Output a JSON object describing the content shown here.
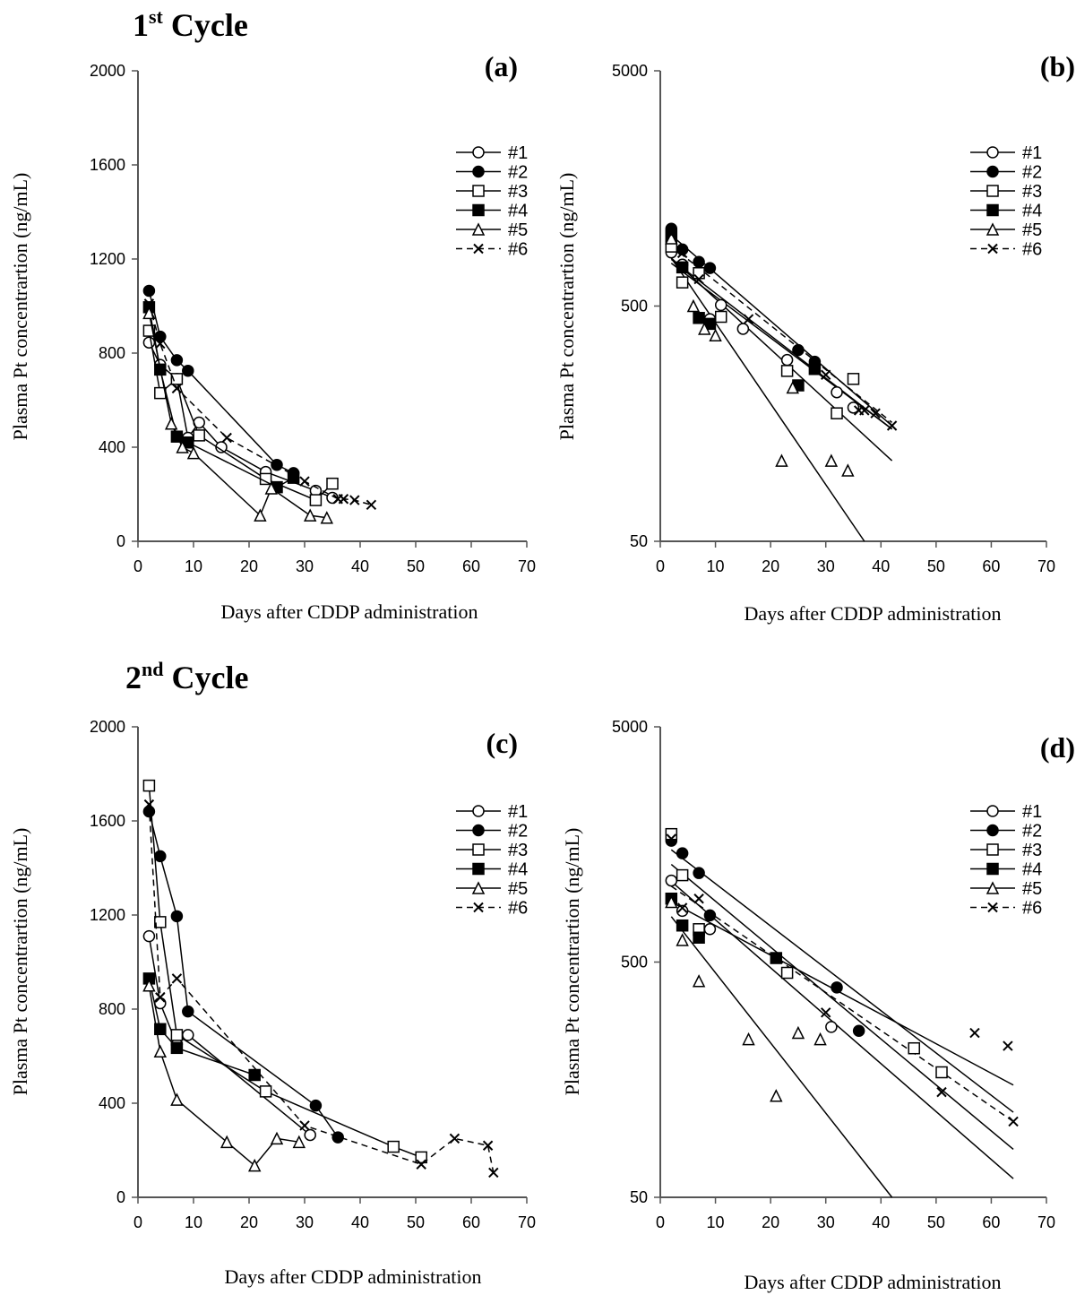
{
  "page": {
    "cycle1_title": "Cycle",
    "cycle1_ordinal": "1",
    "cycle1_sup": "st",
    "cycle2_title": "Cycle",
    "cycle2_ordinal": "2",
    "cycle2_sup": "nd"
  },
  "colors": {
    "line": "#000000",
    "marker_open": "#ffffff",
    "marker_filled": "#000000",
    "open_square_edge": "#1f3864"
  },
  "chart_data": [
    {
      "id": "a",
      "type": "line",
      "panel_label": "(a)",
      "xlabel": "Days after CDDP administration",
      "ylabel": "Plasma Pt concentrartion (ng/mL)",
      "xlim": [
        0,
        70
      ],
      "xticks": [
        0,
        10,
        20,
        30,
        40,
        50,
        60,
        70
      ],
      "ylim": [
        0,
        2000
      ],
      "yticks": [
        0,
        400,
        800,
        1200,
        1600,
        2000
      ],
      "yscale": "linear",
      "legend_position": "top-right",
      "series": [
        {
          "name": "#1",
          "marker": "circle-open",
          "dash": false,
          "x": [
            2,
            4,
            7,
            9,
            11,
            15,
            23,
            32,
            35
          ],
          "y": [
            845,
            750,
            690,
            440,
            505,
            400,
            295,
            215,
            185
          ]
        },
        {
          "name": "#2",
          "marker": "circle-filled",
          "dash": false,
          "x": [
            2,
            4,
            7,
            9,
            25,
            28
          ],
          "y": [
            1065,
            870,
            770,
            725,
            325,
            290
          ]
        },
        {
          "name": "#3",
          "marker": "square-open",
          "dash": false,
          "x": [
            2,
            4,
            7,
            11,
            23,
            32,
            35
          ],
          "y": [
            895,
            630,
            690,
            450,
            265,
            175,
            245
          ]
        },
        {
          "name": "#4",
          "marker": "square-filled",
          "dash": false,
          "x": [
            2,
            4,
            7,
            9,
            25,
            28
          ],
          "y": [
            995,
            730,
            445,
            420,
            230,
            270
          ]
        },
        {
          "name": "#5",
          "marker": "triangle-open",
          "dash": false,
          "x": [
            2,
            6,
            8,
            10,
            22,
            24,
            31,
            34
          ],
          "y": [
            970,
            500,
            400,
            375,
            110,
            225,
            110,
            100
          ]
        },
        {
          "name": "#6",
          "marker": "x",
          "dash": true,
          "x": [
            2,
            4,
            7,
            16,
            30,
            36,
            37,
            39,
            42
          ],
          "y": [
            1010,
            840,
            650,
            440,
            255,
            180,
            180,
            175,
            155
          ]
        }
      ]
    },
    {
      "id": "b",
      "type": "scatter",
      "panel_label": "(b)",
      "xlabel": "Days after CDDP administration",
      "ylabel": "Plasma Pt concentrartion (ng/mL)",
      "xlim": [
        0,
        70
      ],
      "xticks": [
        0,
        10,
        20,
        30,
        40,
        50,
        60,
        70
      ],
      "ylim": [
        50,
        5000
      ],
      "yticks": [
        50,
        500,
        5000
      ],
      "yscale": "log",
      "legend_position": "top-right",
      "series": [
        {
          "name": "#1",
          "marker": "circle-open",
          "dash": false,
          "x": [
            2,
            4,
            7,
            9,
            11,
            15,
            23,
            32,
            35
          ],
          "y": [
            845,
            750,
            690,
            440,
            505,
            400,
            295,
            215,
            185
          ],
          "fit_line": [
            [
              2,
              790
            ],
            [
              42,
              150
            ]
          ]
        },
        {
          "name": "#2",
          "marker": "circle-filled",
          "dash": false,
          "x": [
            2,
            4,
            7,
            9,
            25,
            28
          ],
          "y": [
            1065,
            870,
            770,
            725,
            325,
            290
          ],
          "fit_line": [
            [
              2,
              1000
            ],
            [
              42,
              155
            ]
          ]
        },
        {
          "name": "#3",
          "marker": "square-open",
          "dash": false,
          "x": [
            2,
            4,
            7,
            11,
            23,
            32,
            35
          ],
          "y": [
            895,
            630,
            690,
            450,
            265,
            175,
            245
          ],
          "fit_line": [
            [
              2,
              760
            ],
            [
              42,
              150
            ]
          ]
        },
        {
          "name": "#4",
          "marker": "square-filled",
          "dash": false,
          "x": [
            2,
            4,
            7,
            9,
            25,
            28
          ],
          "y": [
            995,
            730,
            445,
            420,
            230,
            270
          ],
          "fit_line": [
            [
              2,
              800
            ],
            [
              42,
              110
            ]
          ]
        },
        {
          "name": "#5",
          "marker": "triangle-open",
          "dash": false,
          "x": [
            2,
            6,
            8,
            10,
            22,
            24,
            31,
            34
          ],
          "y": [
            970,
            500,
            400,
            375,
            110,
            225,
            110,
            100
          ],
          "fit_line": [
            [
              2,
              800
            ],
            [
              37,
              50
            ]
          ]
        },
        {
          "name": "#6",
          "marker": "x",
          "dash": true,
          "x": [
            2,
            4,
            7,
            16,
            30,
            36,
            37,
            39,
            42
          ],
          "y": [
            1010,
            840,
            650,
            440,
            255,
            180,
            180,
            175,
            155
          ],
          "fit_line": [
            [
              2,
              900
            ],
            [
              42,
              160
            ]
          ]
        }
      ]
    },
    {
      "id": "c",
      "type": "line",
      "panel_label": "(c)",
      "xlabel": "Days after CDDP administration",
      "ylabel": "Plasma Pt concentrartion (ng/mL)",
      "xlim": [
        0,
        70
      ],
      "xticks": [
        0,
        10,
        20,
        30,
        40,
        50,
        60,
        70
      ],
      "ylim": [
        0,
        2000
      ],
      "yticks": [
        0,
        400,
        800,
        1200,
        1600,
        2000
      ],
      "yscale": "linear",
      "legend_position": "top-right",
      "series": [
        {
          "name": "#1",
          "marker": "circle-open",
          "dash": false,
          "x": [
            2,
            4,
            7,
            9,
            31
          ],
          "y": [
            1110,
            825,
            650,
            690,
            265
          ]
        },
        {
          "name": "#2",
          "marker": "circle-filled",
          "dash": false,
          "x": [
            2,
            4,
            7,
            9,
            32,
            36
          ],
          "y": [
            1640,
            1450,
            1195,
            790,
            390,
            255
          ]
        },
        {
          "name": "#3",
          "marker": "square-open",
          "dash": false,
          "x": [
            2,
            4,
            7,
            23,
            46,
            51
          ],
          "y": [
            1750,
            1170,
            690,
            450,
            215,
            170
          ]
        },
        {
          "name": "#4",
          "marker": "square-filled",
          "dash": false,
          "x": [
            2,
            4,
            7,
            21
          ],
          "y": [
            930,
            715,
            635,
            520
          ]
        },
        {
          "name": "#5",
          "marker": "triangle-open",
          "dash": false,
          "x": [
            2,
            4,
            7,
            16,
            21,
            25,
            29
          ],
          "y": [
            900,
            620,
            415,
            235,
            135,
            250,
            235
          ]
        },
        {
          "name": "#6",
          "marker": "x",
          "dash": true,
          "x": [
            2,
            4,
            7,
            30,
            51,
            57,
            63,
            64
          ],
          "y": [
            1670,
            850,
            930,
            305,
            140,
            250,
            220,
            105
          ]
        }
      ]
    },
    {
      "id": "d",
      "type": "scatter",
      "panel_label": "(d)",
      "xlabel": "Days after CDDP administration",
      "ylabel": "Plasma Pt concentrartion (ng/mL)",
      "xlim": [
        0,
        70
      ],
      "xticks": [
        0,
        10,
        20,
        30,
        40,
        50,
        60,
        70
      ],
      "ylim": [
        50,
        5000
      ],
      "yticks": [
        50,
        500,
        5000
      ],
      "ytick_labels": [
        "50",
        "500",
        "5000"
      ],
      "yscale": "log",
      "legend_position": "top-right",
      "series": [
        {
          "name": "#1",
          "marker": "circle-open",
          "dash": false,
          "x": [
            2,
            4,
            7,
            9,
            31
          ],
          "y": [
            1110,
            825,
            650,
            690,
            265
          ]
        },
        {
          "name": "#2",
          "marker": "circle-filled",
          "dash": false,
          "x": [
            2,
            4,
            7,
            9,
            32,
            36
          ],
          "y": [
            1640,
            1450,
            1195,
            790,
            390,
            255
          ]
        },
        {
          "name": "#3",
          "marker": "square-open",
          "dash": false,
          "x": [
            2,
            4,
            7,
            23,
            46,
            51
          ],
          "y": [
            1750,
            1170,
            690,
            450,
            215,
            170
          ]
        },
        {
          "name": "#4",
          "marker": "square-filled",
          "dash": false,
          "x": [
            2,
            4,
            7,
            21
          ],
          "y": [
            930,
            715,
            635,
            520
          ]
        },
        {
          "name": "#5",
          "marker": "triangle-open",
          "dash": false,
          "x": [
            2,
            4,
            7,
            16,
            21,
            25,
            29
          ],
          "y": [
            900,
            620,
            415,
            235,
            135,
            250,
            235
          ]
        },
        {
          "name": "#6",
          "marker": "x",
          "dash": true,
          "x": [
            2,
            4,
            7,
            30,
            51,
            57,
            63,
            64
          ],
          "y": [
            1670,
            850,
            930,
            305,
            140,
            250,
            220,
            105
          ]
        }
      ],
      "fit_lines": [
        {
          "dash": false,
          "points": [
            [
              2,
              1500
            ],
            [
              64,
              115
            ]
          ]
        },
        {
          "dash": false,
          "points": [
            [
              2,
              1300
            ],
            [
              64,
              80
            ]
          ]
        },
        {
          "dash": false,
          "points": [
            [
              2,
              1100
            ],
            [
              64,
              60
            ]
          ]
        },
        {
          "dash": false,
          "points": [
            [
              2,
              780
            ],
            [
              42,
              50
            ]
          ]
        },
        {
          "dash": false,
          "points": [
            [
              2,
              900
            ],
            [
              64,
              150
            ]
          ]
        },
        {
          "dash": true,
          "points": [
            [
              2,
              1050
            ],
            [
              64,
              105
            ]
          ]
        }
      ]
    }
  ]
}
